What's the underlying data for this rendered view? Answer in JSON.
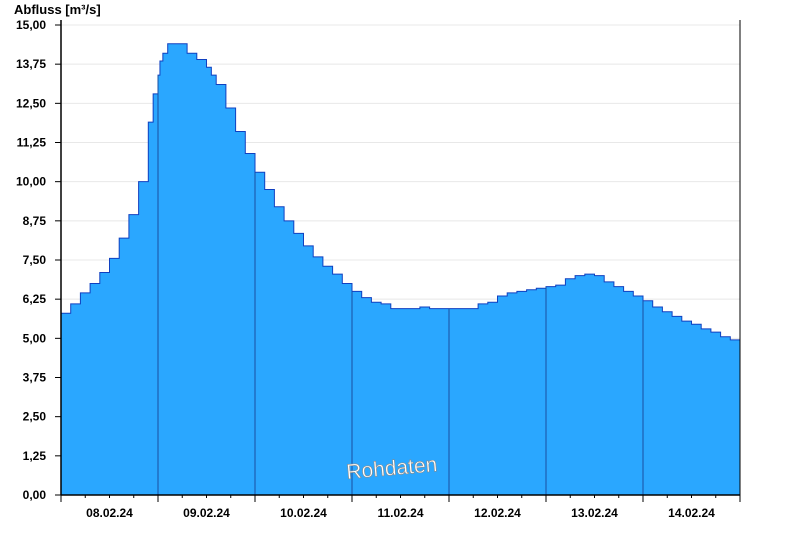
{
  "chart_data": {
    "type": "area",
    "title": "",
    "ylabel": "Abfluss [m³/s]",
    "xlabel": "",
    "ylim": [
      0,
      15
    ],
    "yticks": [
      "0,00",
      "1,25",
      "2,50",
      "3,75",
      "5,00",
      "6,25",
      "7,50",
      "8,75",
      "10,00",
      "11,25",
      "12,50",
      "13,75",
      "15,00"
    ],
    "ytick_values": [
      0,
      1.25,
      2.5,
      3.75,
      5,
      6.25,
      7.5,
      8.75,
      10,
      11.25,
      12.5,
      13.75,
      15
    ],
    "xlim": [
      0,
      7
    ],
    "xtick_labels": [
      "08.02.24",
      "09.02.24",
      "10.02.24",
      "11.02.24",
      "12.02.24",
      "13.02.24",
      "14.02.24"
    ],
    "grid": true,
    "watermark": "Rohdaten",
    "series": [
      {
        "x": [
          0,
          0.1,
          0.2,
          0.3,
          0.4,
          0.5,
          0.6,
          0.7,
          0.8,
          0.9,
          0.95,
          1.0,
          1.02,
          1.05,
          1.1,
          1.2,
          1.3,
          1.4,
          1.5,
          1.55,
          1.6,
          1.7,
          1.8,
          1.9,
          2.0,
          2.1,
          2.2,
          2.3,
          2.4,
          2.5,
          2.6,
          2.7,
          2.8,
          2.9,
          3.0,
          3.1,
          3.2,
          3.3,
          3.4,
          3.5,
          3.6,
          3.7,
          3.8,
          3.9,
          4.0,
          4.1,
          4.2,
          4.3,
          4.4,
          4.5,
          4.6,
          4.7,
          4.8,
          4.9,
          5.0,
          5.1,
          5.2,
          5.3,
          5.4,
          5.5,
          5.6,
          5.7,
          5.8,
          5.9,
          6.0,
          6.1,
          6.2,
          6.3,
          6.4,
          6.5,
          6.6,
          6.7,
          6.8,
          6.9,
          7.0
        ],
        "values": [
          5.8,
          6.1,
          6.45,
          6.75,
          7.1,
          7.55,
          8.2,
          8.95,
          10.0,
          11.9,
          12.8,
          13.4,
          13.85,
          14.1,
          14.4,
          14.4,
          14.1,
          13.9,
          13.65,
          13.4,
          13.1,
          12.35,
          11.6,
          10.9,
          10.3,
          9.75,
          9.2,
          8.75,
          8.35,
          7.95,
          7.6,
          7.3,
          7.05,
          6.75,
          6.5,
          6.3,
          6.15,
          6.1,
          5.95,
          5.95,
          5.95,
          6.0,
          5.95,
          5.95,
          5.95,
          5.95,
          5.95,
          6.1,
          6.15,
          6.35,
          6.45,
          6.5,
          6.55,
          6.6,
          6.65,
          6.7,
          6.9,
          7.0,
          7.05,
          7.0,
          6.8,
          6.65,
          6.5,
          6.35,
          6.2,
          6.0,
          5.85,
          5.7,
          5.55,
          5.45,
          5.3,
          5.2,
          5.05,
          4.95,
          4.8
        ],
        "color": "#2aa7ff",
        "line_color": "#1040c0"
      }
    ],
    "axis_color": "#000000",
    "grid_color": "#e8e8e8"
  }
}
